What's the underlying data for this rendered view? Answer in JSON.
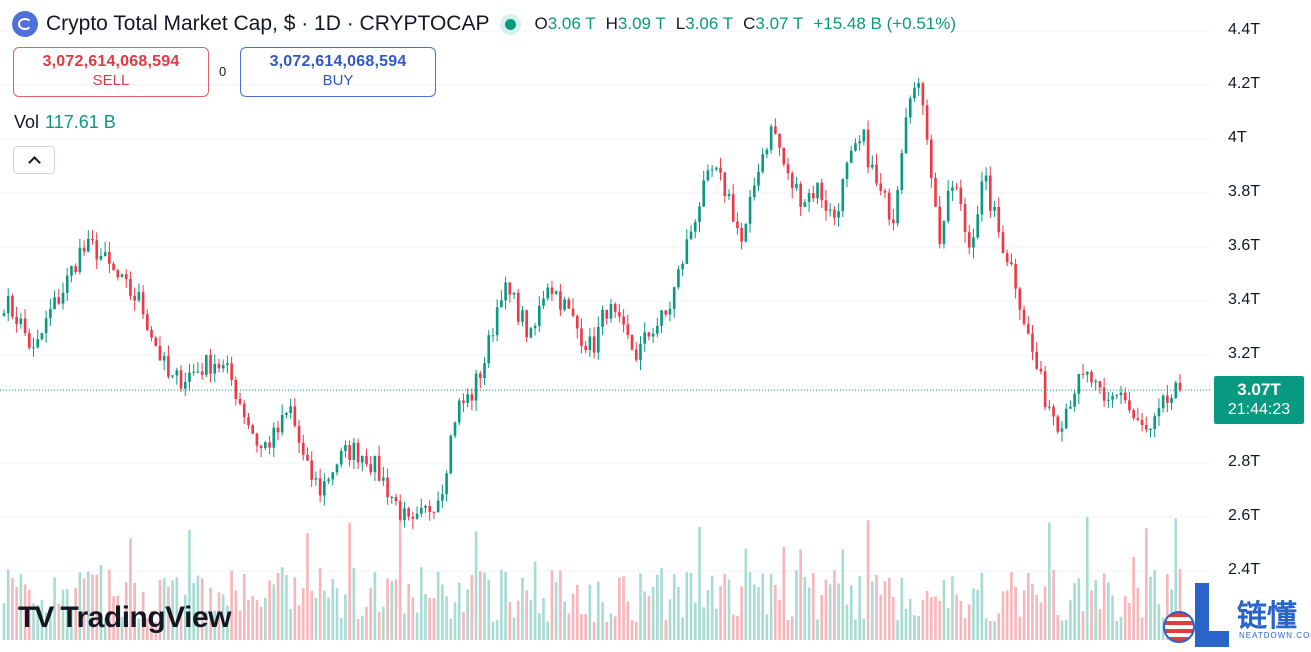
{
  "header": {
    "title": "Crypto Total Market Cap, $ · 1D · CRYPTOCAP",
    "ohlc": {
      "o_key": "O",
      "o_val": "3.06 T",
      "h_key": "H",
      "h_val": "3.09 T",
      "l_key": "L",
      "l_val": "3.06 T",
      "c_key": "C",
      "c_val": "3.07 T",
      "change": "+15.48 B (+0.51%)"
    }
  },
  "trade": {
    "sell_price": "3,072,614,068,594",
    "sell_label": "SELL",
    "spread": "0",
    "buy_price": "3,072,614,068,594",
    "buy_label": "BUY"
  },
  "volume": {
    "label": "Vol",
    "value": "117.61 B"
  },
  "price_tag": {
    "price": "3.07T",
    "countdown": "21:44:23"
  },
  "branding": {
    "tradingview": "TradingView",
    "watermark_cn": "链懂",
    "watermark_sub": "NEATDOWN.COM"
  },
  "colors": {
    "up": "#089981",
    "down": "#f23645",
    "vol_up": "#a7dcd2",
    "vol_down": "#f7b6ba"
  },
  "chart_data": {
    "type": "candlestick",
    "y_axis": {
      "labels": [
        "4.4T",
        "4.2T",
        "4T",
        "3.8T",
        "3.6T",
        "3.4T",
        "3.2T",
        "2.8T",
        "2.6T",
        "2.4T"
      ],
      "ticks": [
        4.4,
        4.2,
        4.0,
        3.8,
        3.6,
        3.4,
        3.2,
        2.8,
        2.6,
        2.4
      ],
      "unit": "T",
      "range": [
        2.3,
        4.45
      ]
    },
    "last_price": 3.07,
    "waypoints_close": [
      3.4,
      3.33,
      3.2,
      3.35,
      3.45,
      3.58,
      3.6,
      3.52,
      3.45,
      3.4,
      3.25,
      3.1,
      3.12,
      3.15,
      3.18,
      3.12,
      2.98,
      2.85,
      2.9,
      3.0,
      2.78,
      2.7,
      2.8,
      2.85,
      2.83,
      2.75,
      2.65,
      2.55,
      2.62,
      2.7,
      3.0,
      3.05,
      3.2,
      3.45,
      3.38,
      3.25,
      3.48,
      3.4,
      3.3,
      3.22,
      3.38,
      3.28,
      3.2,
      3.3,
      3.35,
      3.55,
      3.75,
      3.88,
      3.8,
      3.6,
      3.9,
      4.05,
      3.85,
      3.78,
      3.82,
      3.7,
      3.9,
      4.0,
      3.8,
      3.72,
      4.2,
      4.15,
      3.62,
      3.85,
      3.6,
      3.85,
      3.65,
      3.5,
      3.25,
      3.05,
      2.95,
      3.08,
      3.12,
      3.0,
      3.08,
      2.95,
      2.9,
      3.02,
      3.07
    ],
    "candle_count": 280,
    "note_series": "daily OHLC candles with volume bars"
  }
}
